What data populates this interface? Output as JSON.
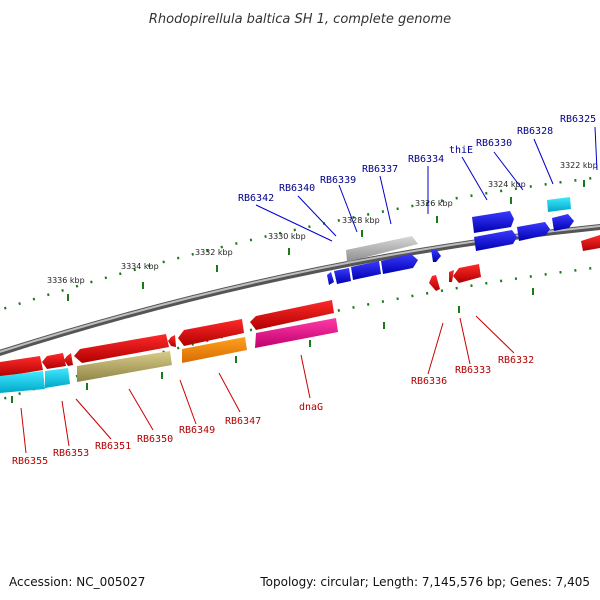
{
  "title": "Rhodopirellula baltica SH 1, complete genome",
  "footer": {
    "accession": "Accession: NC_005027",
    "summary": "Topology: circular; Length: 7,145,576 bp; Genes: 7,405"
  },
  "scale_labels": [
    "3322 kbp",
    "3324 kbp",
    "3326 kbp",
    "3328 kbp",
    "3330 kbp",
    "3332 kbp",
    "3334 kbp",
    "3336 kbp"
  ],
  "top_labels": [
    "RB6325",
    "RB6328",
    "RB6330",
    "thiE",
    "RB6334",
    "RB6337",
    "RB6339",
    "RB6340",
    "RB6342"
  ],
  "bottom_labels": [
    "RB6332",
    "RB6333",
    "RB6336",
    "dnaG",
    "RB6347",
    "RB6349",
    "RB6350",
    "RB6351",
    "RB6353",
    "RB6355"
  ],
  "colors": {
    "backbone": "#808080",
    "tick": "#1a7a1a",
    "forward_cds": "#1010dd",
    "reverse_cds": "#dd0000",
    "label_top": "#00008b",
    "label_bottom": "#b20000"
  }
}
